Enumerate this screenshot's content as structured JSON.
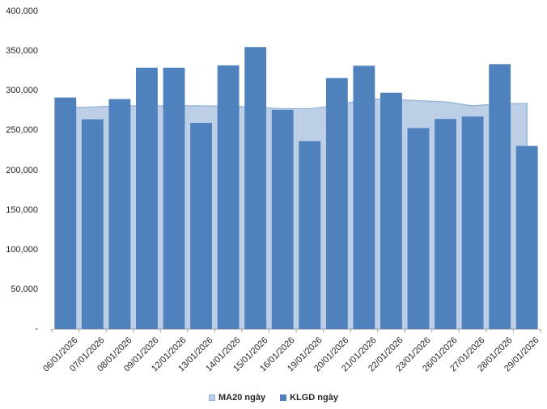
{
  "chart_data": {
    "type": "bar",
    "title": "",
    "xlabel": "",
    "ylabel": "",
    "categories": [
      "06/01/2026",
      "07/01/2026",
      "08/01/2026",
      "09/01/2026",
      "12/01/2026",
      "13/01/2026",
      "14/01/2026",
      "15/01/2026",
      "16/01/2026",
      "19/01/2026",
      "20/01/2026",
      "21/01/2026",
      "22/01/2026",
      "23/01/2026",
      "26/01/2026",
      "27/01/2026",
      "28/01/2026",
      "29/01/2026"
    ],
    "series": [
      {
        "name": "MA20 ngày",
        "type": "area",
        "color": "#BDCFE6",
        "line_color": "#95B3D7",
        "values": [
          278500,
          279500,
          281000,
          281000,
          281000,
          281000,
          280500,
          279500,
          277500,
          277500,
          281000,
          289500,
          289000,
          287500,
          286000,
          281000,
          283500,
          284000
        ]
      },
      {
        "name": "KLGD ngày",
        "type": "bar",
        "color": "#4F81BD",
        "values": [
          291500,
          264000,
          289500,
          329000,
          329000,
          259500,
          332000,
          355000,
          276000,
          236500,
          316000,
          331500,
          297500,
          253000,
          264500,
          267500,
          333500,
          230500
        ]
      }
    ],
    "ylim": [
      0,
      400000
    ],
    "ytick_step": 50000,
    "ytick_labels": [
      "-",
      "50,000",
      "100,000",
      "150,000",
      "200,000",
      "250,000",
      "300,000",
      "350,000",
      "400,000"
    ],
    "grid": false,
    "legend_position": "bottom",
    "axis_color": "#BFBFBF",
    "tick_color": "#A6A6A6",
    "text_color": "#262626",
    "background": "#FFFFFF"
  }
}
